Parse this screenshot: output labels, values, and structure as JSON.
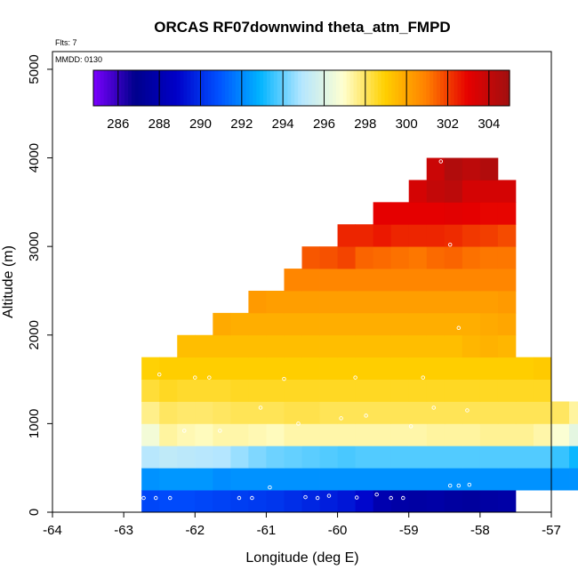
{
  "chart_data": {
    "type": "heatmap",
    "title": "ORCAS RF07downwind theta_atm_FMPD",
    "note_flights": "Flts: 7",
    "note_date": "MMDD: 0130",
    "xlabel": "Longitude (deg E)",
    "ylabel": "Altitude (m)",
    "xlim": [
      -64,
      -57
    ],
    "ylim": [
      0,
      5200
    ],
    "xticks": [
      "-64",
      "-63",
      "-62",
      "-61",
      "-60",
      "-59",
      "-58",
      "-57"
    ],
    "yticks": [
      "0",
      "1000",
      "2000",
      "3000",
      "4000",
      "5000"
    ],
    "colorbar": {
      "range": [
        284.8,
        305.0
      ],
      "tick_labels": [
        "286",
        "288",
        "290",
        "292",
        "294",
        "296",
        "298",
        "300",
        "302",
        "304"
      ],
      "colors": [
        "#7b00ff",
        "#00008c",
        "#0000c8",
        "#0050ff",
        "#00b4ff",
        "#b4e6ff",
        "#ffffd0",
        "#ffd000",
        "#ff8000",
        "#e60000",
        "#a01010"
      ]
    },
    "bin_width_lon": 0.25,
    "bin_height_alt": 250,
    "rows": [
      {
        "alt": 125,
        "lon0": -62.75,
        "values": [
          290.6,
          290.7,
          290.7,
          290.6,
          290.5,
          290.4,
          290.3,
          290.2,
          290.0,
          289.8,
          289.6,
          289.4,
          289.0,
          288.0,
          287.7,
          287.6,
          287.7,
          287.5,
          287.4,
          287.6,
          287.7
        ]
      },
      {
        "alt": 375,
        "lon0": -62.75,
        "values": [
          292.2,
          292.3,
          292.3,
          292.3,
          292.1,
          292.2,
          292.2,
          292.2,
          292.2,
          292.2,
          292.2,
          292.2,
          292.2,
          292.2,
          292.2,
          292.2,
          292.2,
          292.2,
          292.2,
          292.2,
          292.2,
          292.2,
          292.2,
          292.2,
          292.2
        ]
      },
      {
        "alt": 625,
        "lon0": -62.75,
        "values": [
          295.0,
          295.2,
          295.1,
          295.0,
          294.9,
          294.6,
          294.3,
          294.1,
          294.0,
          293.9,
          293.8,
          293.7,
          293.8,
          293.8,
          293.8,
          293.8,
          293.8,
          293.8,
          293.8,
          293.8,
          293.8,
          293.8,
          293.8,
          293.5,
          293.0
        ]
      },
      {
        "alt": 875,
        "lon0": -62.75,
        "values": [
          296.6,
          297.4,
          297.2,
          297.1,
          297.3,
          297.3,
          297.2,
          297.1,
          297.3,
          297.3,
          297.3,
          297.3,
          297.3,
          297.3,
          297.3,
          297.3,
          297.4,
          297.4,
          297.4,
          297.5,
          297.5,
          297.5,
          297.3,
          296.8,
          296.2
        ]
      },
      {
        "alt": 1125,
        "lon0": -62.75,
        "values": [
          297.6,
          298.0,
          297.9,
          297.9,
          298.0,
          298.1,
          298.1,
          298.1,
          298.2,
          298.2,
          298.1,
          298.1,
          298.1,
          298.1,
          298.1,
          298.1,
          298.1,
          298.1,
          298.1,
          298.1,
          298.1,
          298.1,
          298.1,
          298.0,
          297.4
        ]
      },
      {
        "alt": 1375,
        "lon0": -62.75,
        "values": [
          298.4,
          298.6,
          298.5,
          298.5,
          298.5,
          298.6,
          298.6,
          298.6,
          298.6,
          298.6,
          298.6,
          298.6,
          298.6,
          298.6,
          298.6,
          298.6,
          298.6,
          298.6,
          298.6,
          298.6,
          298.6,
          298.6,
          298.6
        ]
      },
      {
        "alt": 1625,
        "lon0": -62.75,
        "values": [
          298.9,
          299.0,
          299.0,
          299.0,
          299.0,
          299.0,
          299.0,
          299.0,
          299.0,
          299.0,
          299.0,
          299.0,
          299.0,
          299.0,
          299.0,
          299.0,
          299.0,
          299.0,
          299.0,
          299.0,
          299.0,
          299.0,
          299.1
        ]
      },
      {
        "alt": 1875,
        "lon0": -62.25,
        "values": [
          299.4,
          299.4,
          299.4,
          299.4,
          299.4,
          299.4,
          299.4,
          299.4,
          299.4,
          299.4,
          299.4,
          299.4,
          299.4,
          299.4,
          299.4,
          299.4,
          299.6,
          299.7,
          299.6
        ]
      },
      {
        "alt": 2125,
        "lon0": -61.75,
        "values": [
          299.9,
          299.8,
          299.8,
          299.8,
          299.8,
          299.8,
          299.8,
          299.8,
          299.8,
          299.8,
          299.8,
          299.8,
          299.8,
          299.8,
          299.8,
          299.9,
          300.0
        ]
      },
      {
        "alt": 2375,
        "lon0": -61.25,
        "values": [
          300.3,
          300.2,
          300.2,
          300.2,
          300.2,
          300.2,
          300.2,
          300.2,
          300.2,
          300.2,
          300.2,
          300.2,
          300.2,
          300.2,
          300.3
        ]
      },
      {
        "alt": 2625,
        "lon0": -60.75,
        "values": [
          300.8,
          300.8,
          300.8,
          300.8,
          300.8,
          300.8,
          300.8,
          300.8,
          300.8,
          300.8,
          300.8,
          300.8,
          300.8
        ]
      },
      {
        "alt": 2875,
        "lon0": -60.5,
        "values": [
          301.6,
          301.7,
          301.9,
          301.4,
          301.3,
          301.2,
          301.1,
          301.3,
          301.4,
          301.2,
          301.1,
          301.1
        ]
      },
      {
        "alt": 3125,
        "lon0": -60.0,
        "values": [
          302.4,
          302.4,
          302.6,
          302.4,
          302.4,
          302.4,
          302.3,
          302.1,
          302.0,
          301.8
        ]
      },
      {
        "alt": 3375,
        "lon0": -59.5,
        "values": [
          303.0,
          303.0,
          303.0,
          303.0,
          303.1,
          303.0,
          302.9,
          302.9
        ]
      },
      {
        "alt": 3625,
        "lon0": -59.0,
        "values": [
          303.5,
          303.5,
          303.5,
          303.5,
          303.5,
          303.5
        ]
      },
      {
        "alt": 3875,
        "lon0": -58.75,
        "values": [
          303.8,
          304.0,
          304.2,
          304.5
        ]
      },
      {
        "alt": 3625,
        "lon0": -58.75,
        "values": [
          304.0,
          304.2
        ]
      }
    ],
    "overrides": [
      {
        "alt": 3875,
        "lon0": -58.5,
        "values": [
          304.5
        ]
      },
      {
        "alt": 3625,
        "lon0": -58.75,
        "values": [
          304.0,
          304.2
        ]
      },
      {
        "alt": 3875,
        "lon0": -58.75,
        "values": []
      }
    ],
    "points": [
      [
        -62.72,
        160
      ],
      [
        -62.55,
        160
      ],
      [
        -62.35,
        160
      ],
      [
        -61.38,
        160
      ],
      [
        -61.2,
        160
      ],
      [
        -60.95,
        280
      ],
      [
        -60.45,
        170
      ],
      [
        -60.28,
        160
      ],
      [
        -60.12,
        185
      ],
      [
        -59.73,
        165
      ],
      [
        -59.45,
        200
      ],
      [
        -59.25,
        160
      ],
      [
        -59.08,
        160
      ],
      [
        -58.42,
        300
      ],
      [
        -58.3,
        300
      ],
      [
        -58.15,
        310
      ],
      [
        -62.15,
        920
      ],
      [
        -61.65,
        920
      ],
      [
        -60.55,
        1000
      ],
      [
        -59.95,
        1060
      ],
      [
        -59.6,
        1090
      ],
      [
        -58.97,
        970
      ],
      [
        -58.65,
        1180
      ],
      [
        -58.18,
        1150
      ],
      [
        -61.08,
        1180
      ],
      [
        -62.5,
        1555
      ],
      [
        -62.0,
        1520
      ],
      [
        -61.8,
        1520
      ],
      [
        -60.75,
        1505
      ],
      [
        -59.75,
        1520
      ],
      [
        -58.8,
        1520
      ],
      [
        -58.3,
        2080
      ],
      [
        -58.42,
        3020
      ],
      [
        -58.55,
        3960
      ]
    ]
  }
}
